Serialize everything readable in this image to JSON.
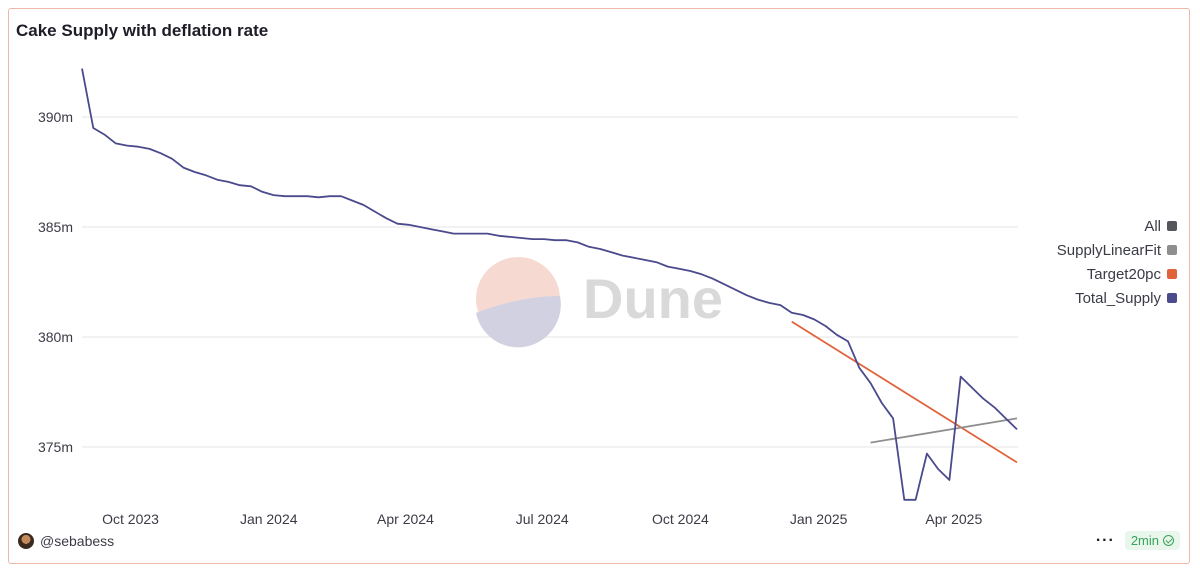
{
  "chart_data": {
    "type": "line",
    "title": "Cake Supply with deflation rate",
    "xlabel": "",
    "ylabel": "",
    "x_ticks": [
      "Oct 2023",
      "Jan 2024",
      "Apr 2024",
      "Jul 2024",
      "Oct 2024",
      "Jan 2025",
      "Apr 2025"
    ],
    "x_range": [
      "2023-09-18",
      "2025-06-02"
    ],
    "y_ticks": [
      375,
      380,
      385,
      390
    ],
    "y_tick_labels": [
      "375m",
      "380m",
      "385m",
      "390m"
    ],
    "ylim": [
      372.5,
      392.5
    ],
    "grid": true,
    "legend_position": "right",
    "legend": [
      {
        "label": "All",
        "color": "#55555c"
      },
      {
        "label": "SupplyLinearFit",
        "color": "#8e8e8e"
      },
      {
        "label": "Target20pc",
        "color": "#e0633b"
      },
      {
        "label": "Total_Supply",
        "color": "#4a4a8c"
      }
    ],
    "series": [
      {
        "name": "Total_Supply",
        "color": "#4a4a8c",
        "points": [
          [
            "2023-09-18",
            392.2
          ],
          [
            "2023-09-25",
            389.5
          ],
          [
            "2023-10-02",
            389.2
          ],
          [
            "2023-10-09",
            388.8
          ],
          [
            "2023-10-16",
            388.7
          ],
          [
            "2023-10-23",
            388.65
          ],
          [
            "2023-10-30",
            388.55
          ],
          [
            "2023-11-06",
            388.35
          ],
          [
            "2023-11-13",
            388.1
          ],
          [
            "2023-11-20",
            387.7
          ],
          [
            "2023-11-27",
            387.5
          ],
          [
            "2023-12-04",
            387.35
          ],
          [
            "2023-12-11",
            387.15
          ],
          [
            "2023-12-18",
            387.05
          ],
          [
            "2023-12-25",
            386.9
          ],
          [
            "2024-01-01",
            386.85
          ],
          [
            "2024-01-08",
            386.6
          ],
          [
            "2024-01-15",
            386.45
          ],
          [
            "2024-01-22",
            386.4
          ],
          [
            "2024-01-29",
            386.4
          ],
          [
            "2024-02-05",
            386.4
          ],
          [
            "2024-02-12",
            386.35
          ],
          [
            "2024-02-19",
            386.4
          ],
          [
            "2024-02-26",
            386.4
          ],
          [
            "2024-03-04",
            386.2
          ],
          [
            "2024-03-11",
            386.0
          ],
          [
            "2024-03-18",
            385.7
          ],
          [
            "2024-03-25",
            385.4
          ],
          [
            "2024-04-01",
            385.15
          ],
          [
            "2024-04-08",
            385.1
          ],
          [
            "2024-04-15",
            385.0
          ],
          [
            "2024-04-22",
            384.9
          ],
          [
            "2024-04-29",
            384.8
          ],
          [
            "2024-05-06",
            384.7
          ],
          [
            "2024-05-13",
            384.7
          ],
          [
            "2024-05-20",
            384.7
          ],
          [
            "2024-05-27",
            384.7
          ],
          [
            "2024-06-03",
            384.6
          ],
          [
            "2024-06-10",
            384.55
          ],
          [
            "2024-06-17",
            384.5
          ],
          [
            "2024-06-24",
            384.45
          ],
          [
            "2024-07-01",
            384.45
          ],
          [
            "2024-07-08",
            384.4
          ],
          [
            "2024-07-15",
            384.4
          ],
          [
            "2024-07-22",
            384.3
          ],
          [
            "2024-07-29",
            384.1
          ],
          [
            "2024-08-05",
            384.0
          ],
          [
            "2024-08-12",
            383.85
          ],
          [
            "2024-08-19",
            383.7
          ],
          [
            "2024-08-26",
            383.6
          ],
          [
            "2024-09-02",
            383.5
          ],
          [
            "2024-09-09",
            383.4
          ],
          [
            "2024-09-16",
            383.2
          ],
          [
            "2024-09-23",
            383.1
          ],
          [
            "2024-09-30",
            383.0
          ],
          [
            "2024-10-07",
            382.85
          ],
          [
            "2024-10-14",
            382.65
          ],
          [
            "2024-10-21",
            382.4
          ],
          [
            "2024-10-28",
            382.15
          ],
          [
            "2024-11-04",
            381.9
          ],
          [
            "2024-11-11",
            381.7
          ],
          [
            "2024-11-18",
            381.55
          ],
          [
            "2024-11-25",
            381.45
          ],
          [
            "2024-12-02",
            381.1
          ],
          [
            "2024-12-09",
            381.0
          ],
          [
            "2024-12-16",
            380.8
          ],
          [
            "2024-12-23",
            380.5
          ],
          [
            "2024-12-30",
            380.1
          ],
          [
            "2025-01-06",
            379.8
          ],
          [
            "2025-01-13",
            378.6
          ],
          [
            "2025-01-20",
            377.9
          ],
          [
            "2025-01-27",
            377.0
          ],
          [
            "2025-02-03",
            376.3
          ],
          [
            "2025-02-10",
            372.6
          ],
          [
            "2025-02-17",
            372.6
          ],
          [
            "2025-02-24",
            374.7
          ],
          [
            "2025-03-03",
            374.0
          ],
          [
            "2025-03-10",
            373.5
          ],
          [
            "2025-03-17",
            378.2
          ],
          [
            "2025-03-24",
            377.7
          ],
          [
            "2025-03-31",
            377.2
          ],
          [
            "2025-04-07",
            376.8
          ],
          [
            "2025-04-14",
            376.3
          ],
          [
            "2025-04-21",
            375.8
          ]
        ]
      },
      {
        "name": "Target20pc",
        "color": "#e0633b",
        "points": [
          [
            "2024-12-02",
            380.7
          ],
          [
            "2025-04-21",
            374.3
          ]
        ]
      },
      {
        "name": "SupplyLinearFit",
        "color": "#8e8e8e",
        "points": [
          [
            "2025-01-20",
            375.2
          ],
          [
            "2025-04-21",
            376.3
          ]
        ]
      }
    ]
  },
  "watermark": {
    "text": "Dune"
  },
  "footer": {
    "username": "@sebabess",
    "refresh": "2min",
    "more": "···"
  }
}
